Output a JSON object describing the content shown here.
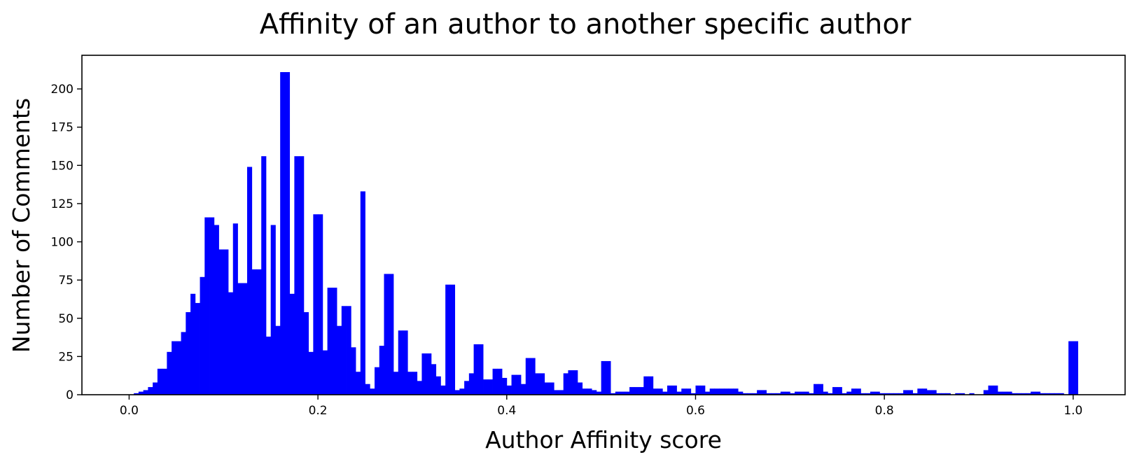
{
  "chart_data": {
    "type": "bar",
    "title": "Affinity of an author to another specific author",
    "xlabel": "Author Affinity score",
    "ylabel": "Number of Comments",
    "xlim": [
      -0.05,
      1.055
    ],
    "ylim": [
      0,
      222
    ],
    "bin_width": 0.005,
    "grid": false,
    "bar_color": "#0000ff",
    "xticks": [
      {
        "value": 0.0,
        "label": "0.0"
      },
      {
        "value": 0.2,
        "label": "0.2"
      },
      {
        "value": 0.4,
        "label": "0.4"
      },
      {
        "value": 0.6,
        "label": "0.6"
      },
      {
        "value": 0.8,
        "label": "0.8"
      },
      {
        "value": 1.0,
        "label": "1.0"
      }
    ],
    "yticks": [
      {
        "value": 0,
        "label": "0"
      },
      {
        "value": 25,
        "label": "25"
      },
      {
        "value": 50,
        "label": "50"
      },
      {
        "value": 75,
        "label": "75"
      },
      {
        "value": 100,
        "label": "100"
      },
      {
        "value": 125,
        "label": "125"
      },
      {
        "value": 150,
        "label": "150"
      },
      {
        "value": 175,
        "label": "175"
      },
      {
        "value": 200,
        "label": "200"
      }
    ],
    "bins": [
      [
        0.005,
        1
      ],
      [
        0.01,
        2
      ],
      [
        0.015,
        3
      ],
      [
        0.02,
        5
      ],
      [
        0.025,
        8
      ],
      [
        0.03,
        17
      ],
      [
        0.035,
        17
      ],
      [
        0.04,
        28
      ],
      [
        0.045,
        35
      ],
      [
        0.05,
        35
      ],
      [
        0.055,
        41
      ],
      [
        0.06,
        54
      ],
      [
        0.065,
        66
      ],
      [
        0.07,
        60
      ],
      [
        0.075,
        77
      ],
      [
        0.08,
        116
      ],
      [
        0.085,
        116
      ],
      [
        0.09,
        111
      ],
      [
        0.095,
        95
      ],
      [
        0.1,
        95
      ],
      [
        0.105,
        67
      ],
      [
        0.11,
        112
      ],
      [
        0.115,
        73
      ],
      [
        0.12,
        73
      ],
      [
        0.125,
        149
      ],
      [
        0.13,
        82
      ],
      [
        0.135,
        82
      ],
      [
        0.14,
        156
      ],
      [
        0.145,
        38
      ],
      [
        0.15,
        111
      ],
      [
        0.155,
        45
      ],
      [
        0.16,
        211
      ],
      [
        0.165,
        211
      ],
      [
        0.17,
        66
      ],
      [
        0.175,
        156
      ],
      [
        0.18,
        156
      ],
      [
        0.185,
        54
      ],
      [
        0.19,
        28
      ],
      [
        0.195,
        118
      ],
      [
        0.2,
        118
      ],
      [
        0.205,
        29
      ],
      [
        0.21,
        70
      ],
      [
        0.215,
        70
      ],
      [
        0.22,
        45
      ],
      [
        0.225,
        58
      ],
      [
        0.23,
        58
      ],
      [
        0.235,
        31
      ],
      [
        0.24,
        15
      ],
      [
        0.245,
        133
      ],
      [
        0.25,
        7
      ],
      [
        0.255,
        4
      ],
      [
        0.26,
        18
      ],
      [
        0.265,
        32
      ],
      [
        0.27,
        79
      ],
      [
        0.275,
        79
      ],
      [
        0.28,
        15
      ],
      [
        0.285,
        42
      ],
      [
        0.29,
        42
      ],
      [
        0.295,
        15
      ],
      [
        0.3,
        15
      ],
      [
        0.305,
        9
      ],
      [
        0.31,
        27
      ],
      [
        0.315,
        27
      ],
      [
        0.32,
        20
      ],
      [
        0.325,
        12
      ],
      [
        0.33,
        6
      ],
      [
        0.335,
        72
      ],
      [
        0.34,
        72
      ],
      [
        0.345,
        3
      ],
      [
        0.35,
        4
      ],
      [
        0.355,
        9
      ],
      [
        0.36,
        14
      ],
      [
        0.365,
        33
      ],
      [
        0.37,
        33
      ],
      [
        0.375,
        10
      ],
      [
        0.38,
        10
      ],
      [
        0.385,
        17
      ],
      [
        0.39,
        17
      ],
      [
        0.395,
        11
      ],
      [
        0.4,
        6
      ],
      [
        0.405,
        13
      ],
      [
        0.41,
        13
      ],
      [
        0.415,
        7
      ],
      [
        0.42,
        24
      ],
      [
        0.425,
        24
      ],
      [
        0.43,
        14
      ],
      [
        0.435,
        14
      ],
      [
        0.44,
        8
      ],
      [
        0.445,
        8
      ],
      [
        0.45,
        3
      ],
      [
        0.455,
        3
      ],
      [
        0.46,
        14
      ],
      [
        0.465,
        16
      ],
      [
        0.47,
        16
      ],
      [
        0.475,
        8
      ],
      [
        0.48,
        4
      ],
      [
        0.485,
        4
      ],
      [
        0.49,
        3
      ],
      [
        0.495,
        2
      ],
      [
        0.5,
        22
      ],
      [
        0.505,
        22
      ],
      [
        0.51,
        1
      ],
      [
        0.515,
        2
      ],
      [
        0.52,
        2
      ],
      [
        0.525,
        2
      ],
      [
        0.53,
        5
      ],
      [
        0.535,
        5
      ],
      [
        0.54,
        5
      ],
      [
        0.545,
        12
      ],
      [
        0.55,
        12
      ],
      [
        0.555,
        4
      ],
      [
        0.56,
        4
      ],
      [
        0.565,
        2
      ],
      [
        0.57,
        6
      ],
      [
        0.575,
        6
      ],
      [
        0.58,
        2
      ],
      [
        0.585,
        4
      ],
      [
        0.59,
        4
      ],
      [
        0.595,
        1
      ],
      [
        0.6,
        6
      ],
      [
        0.605,
        6
      ],
      [
        0.61,
        2
      ],
      [
        0.615,
        4
      ],
      [
        0.62,
        4
      ],
      [
        0.625,
        4
      ],
      [
        0.63,
        4
      ],
      [
        0.635,
        4
      ],
      [
        0.64,
        4
      ],
      [
        0.645,
        2
      ],
      [
        0.65,
        1
      ],
      [
        0.655,
        1
      ],
      [
        0.66,
        1
      ],
      [
        0.665,
        3
      ],
      [
        0.67,
        3
      ],
      [
        0.675,
        1
      ],
      [
        0.68,
        1
      ],
      [
        0.685,
        1
      ],
      [
        0.69,
        2
      ],
      [
        0.695,
        2
      ],
      [
        0.7,
        1
      ],
      [
        0.705,
        2
      ],
      [
        0.71,
        2
      ],
      [
        0.715,
        2
      ],
      [
        0.72,
        1
      ],
      [
        0.725,
        7
      ],
      [
        0.73,
        7
      ],
      [
        0.735,
        2
      ],
      [
        0.74,
        1
      ],
      [
        0.745,
        5
      ],
      [
        0.75,
        5
      ],
      [
        0.755,
        1
      ],
      [
        0.76,
        2
      ],
      [
        0.765,
        4
      ],
      [
        0.77,
        4
      ],
      [
        0.775,
        1
      ],
      [
        0.78,
        1
      ],
      [
        0.785,
        2
      ],
      [
        0.79,
        2
      ],
      [
        0.795,
        1
      ],
      [
        0.8,
        1
      ],
      [
        0.805,
        1
      ],
      [
        0.81,
        1
      ],
      [
        0.815,
        1
      ],
      [
        0.82,
        3
      ],
      [
        0.825,
        3
      ],
      [
        0.83,
        1
      ],
      [
        0.835,
        4
      ],
      [
        0.84,
        4
      ],
      [
        0.845,
        3
      ],
      [
        0.85,
        3
      ],
      [
        0.855,
        1
      ],
      [
        0.86,
        1
      ],
      [
        0.865,
        1
      ],
      [
        0.875,
        1
      ],
      [
        0.88,
        1
      ],
      [
        0.89,
        1
      ],
      [
        0.905,
        3
      ],
      [
        0.91,
        6
      ],
      [
        0.915,
        6
      ],
      [
        0.92,
        2
      ],
      [
        0.925,
        2
      ],
      [
        0.93,
        2
      ],
      [
        0.935,
        1
      ],
      [
        0.94,
        1
      ],
      [
        0.945,
        1
      ],
      [
        0.95,
        1
      ],
      [
        0.955,
        2
      ],
      [
        0.96,
        2
      ],
      [
        0.965,
        1
      ],
      [
        0.97,
        1
      ],
      [
        0.975,
        1
      ],
      [
        0.98,
        1
      ],
      [
        0.985,
        1
      ],
      [
        0.995,
        35
      ],
      [
        1.0,
        35
      ]
    ]
  }
}
